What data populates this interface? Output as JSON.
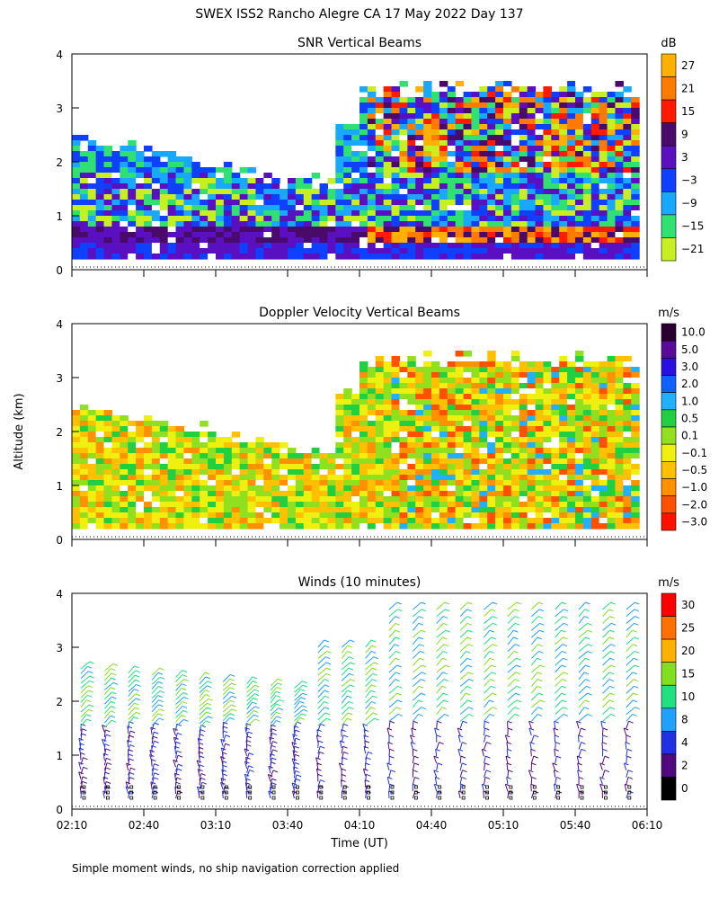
{
  "title": "SWEX ISS2 Rancho Alegre CA  17 May 2022 Day 137",
  "ylabel": "Altitude (km)",
  "xlabel": "Time (UT)",
  "footnote": "Simple moment winds, no ship navigation correction applied",
  "chart_data": [
    {
      "type": "heatmap",
      "title": "SNR Vertical Beams",
      "units": "dB",
      "x_ticks": [
        "02:10",
        "02:40",
        "03:10",
        "03:40",
        "04:10",
        "04:40",
        "05:10",
        "05:40",
        "06:10"
      ],
      "y_ticks": [
        "0",
        "1",
        "2",
        "3",
        "4"
      ],
      "ylim": [
        0,
        4
      ],
      "colorbar": [
        {
          "label": "27",
          "color": "#ffb000"
        },
        {
          "label": "21",
          "color": "#ff7a00"
        },
        {
          "label": "15",
          "color": "#ff1a00"
        },
        {
          "label": "9",
          "color": "#4a0a6a"
        },
        {
          "label": "3",
          "color": "#5a10c0"
        },
        {
          "label": "−3",
          "color": "#1040ff"
        },
        {
          "label": "−9",
          "color": "#18a8ff"
        },
        {
          "label": "−15",
          "color": "#30e070"
        },
        {
          "label": "−21",
          "color": "#c8f020"
        }
      ]
    },
    {
      "type": "heatmap",
      "title": "Doppler Velocity Vertical Beams",
      "units": "m/s",
      "x_ticks": [
        "02:10",
        "02:40",
        "03:10",
        "03:40",
        "04:10",
        "04:40",
        "05:10",
        "05:40",
        "06:10"
      ],
      "y_ticks": [
        "0",
        "1",
        "2",
        "3",
        "4"
      ],
      "ylim": [
        0,
        4
      ],
      "colorbar": [
        {
          "label": "10.0",
          "color": "#2a0030"
        },
        {
          "label": "5.0",
          "color": "#5a0a9a"
        },
        {
          "label": "3.0",
          "color": "#2a10e0"
        },
        {
          "label": "2.0",
          "color": "#1060ff"
        },
        {
          "label": "1.0",
          "color": "#20b0ff"
        },
        {
          "label": "0.5",
          "color": "#20d040"
        },
        {
          "label": "0.1",
          "color": "#90e020"
        },
        {
          "label": "−0.1",
          "color": "#f0f010"
        },
        {
          "label": "−0.5",
          "color": "#ffc000"
        },
        {
          "label": "−1.0",
          "color": "#ff9000"
        },
        {
          "label": "−2.0",
          "color": "#ff5000"
        },
        {
          "label": "−3.0",
          "color": "#ff1000"
        }
      ]
    },
    {
      "type": "wind-barbs",
      "title": "Winds (10 minutes)",
      "units": "m/s",
      "x_ticks": [
        "02:10",
        "02:40",
        "03:10",
        "03:40",
        "04:10",
        "04:40",
        "05:10",
        "05:40",
        "06:10"
      ],
      "y_ticks": [
        "0",
        "1",
        "2",
        "3",
        "4"
      ],
      "ylim": [
        0,
        4
      ],
      "colorbar": [
        {
          "label": "30",
          "color": "#ff0000"
        },
        {
          "label": "25",
          "color": "#ff7000"
        },
        {
          "label": "20",
          "color": "#ffb000"
        },
        {
          "label": "15",
          "color": "#80e020"
        },
        {
          "label": "10",
          "color": "#20e080"
        },
        {
          "label": "8",
          "color": "#20a0ff"
        },
        {
          "label": "4",
          "color": "#2030e0"
        },
        {
          "label": "2",
          "color": "#500a80"
        },
        {
          "label": "0",
          "color": "#000000"
        }
      ]
    }
  ]
}
